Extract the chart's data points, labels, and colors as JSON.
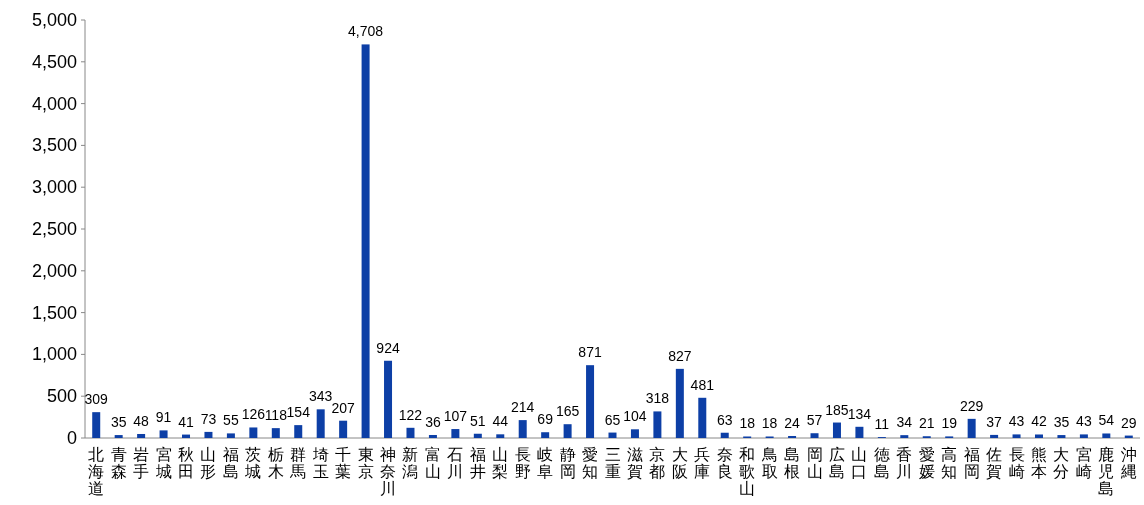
{
  "chart_data": {
    "type": "bar",
    "categories": [
      "北海道",
      "青森",
      "岩手",
      "宮城",
      "秋田",
      "山形",
      "福島",
      "茨城",
      "栃木",
      "群馬",
      "埼玉",
      "千葉",
      "東京",
      "神奈川",
      "新潟",
      "富山",
      "石川",
      "福井",
      "山梨",
      "長野",
      "岐阜",
      "静岡",
      "愛知",
      "三重",
      "滋賀",
      "京都",
      "大阪",
      "兵庫",
      "奈良",
      "和歌山",
      "鳥取",
      "島根",
      "岡山",
      "広島",
      "山口",
      "徳島",
      "香川",
      "愛媛",
      "高知",
      "福岡",
      "佐賀",
      "長崎",
      "熊本",
      "大分",
      "宮崎",
      "鹿児島",
      "沖縄"
    ],
    "values": [
      309,
      35,
      48,
      91,
      41,
      73,
      55,
      126,
      118,
      154,
      343,
      207,
      4708,
      924,
      122,
      36,
      107,
      51,
      44,
      214,
      69,
      165,
      871,
      65,
      104,
      318,
      827,
      481,
      63,
      18,
      18,
      24,
      57,
      185,
      134,
      11,
      34,
      21,
      19,
      229,
      37,
      43,
      42,
      35,
      43,
      54,
      29
    ],
    "color": "#0d3fa6",
    "ylim": [
      0,
      5000
    ],
    "yticks": [
      {
        "value": 0,
        "label": "0"
      },
      {
        "value": 500,
        "label": "500"
      },
      {
        "value": 1000,
        "label": "1,000"
      },
      {
        "value": 1500,
        "label": "1,500"
      },
      {
        "value": 2000,
        "label": "2,000"
      },
      {
        "value": 2500,
        "label": "2,500"
      },
      {
        "value": 3000,
        "label": "3,000"
      },
      {
        "value": 3500,
        "label": "3,500"
      },
      {
        "value": 4000,
        "label": "4,000"
      },
      {
        "value": 4500,
        "label": "4,500"
      },
      {
        "value": 5000,
        "label": "5,000"
      }
    ],
    "value_labels": [
      "309",
      "35",
      "48",
      "91",
      "41",
      "73",
      "55",
      "126",
      "118",
      "154",
      "343",
      "207",
      "4,708",
      "924",
      "122",
      "36",
      "107",
      "51",
      "44",
      "214",
      "69",
      "165",
      "871",
      "65",
      "104",
      "318",
      "827",
      "481",
      "63",
      "18",
      "18",
      "24",
      "57",
      "185",
      "134",
      "11",
      "34",
      "21",
      "19",
      "229",
      "37",
      "43",
      "42",
      "35",
      "43",
      "54",
      "29"
    ]
  }
}
